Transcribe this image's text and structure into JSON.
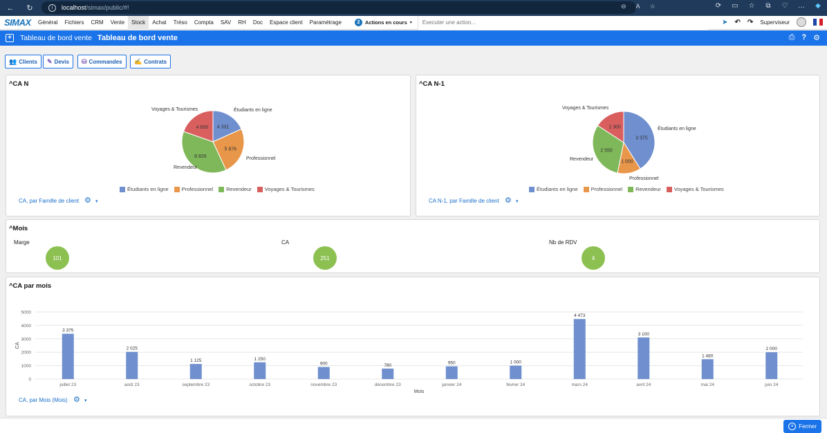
{
  "browser": {
    "url_host": "localhost",
    "url_path": "/simax/public/#!"
  },
  "app": {
    "logo": "SIMAX",
    "menu": [
      "Général",
      "Fichiers",
      "CRM",
      "Vente",
      "Stock",
      "Achat",
      "Tréso",
      "Compta",
      "SAV",
      "RH",
      "Doc",
      "Espace client",
      "Paramétrage"
    ],
    "active_menu": "Stock",
    "actions_count": "2",
    "actions_label": "Actions en cours",
    "exec_placeholder": "Executer une action...",
    "user": "Superviseur"
  },
  "titlebar": {
    "small": "Tableau de bord vente",
    "big": "Tableau de bord vente"
  },
  "tabs": [
    {
      "label": "Clients"
    },
    {
      "label": "Devis"
    },
    {
      "label": "Commandes"
    },
    {
      "label": "Contrats"
    }
  ],
  "colors": {
    "blue": "#6f8fcf",
    "orange": "#e8964a",
    "green": "#7fb85a",
    "red": "#d95f5f",
    "kpi": "#8cc152",
    "accent": "#1a73e8"
  },
  "panels": {
    "can": {
      "title": "^CA N",
      "link": "CA, par Famille de client",
      "labels": {
        "etudiants": "Étudiants en ligne",
        "professionnel": "Professionnel",
        "revendeur": "Revendeur",
        "voyages": "Voyages & Tourismes"
      }
    },
    "can1": {
      "title": "^CA N-1",
      "link": "CA N-1, par Famille de client",
      "labels": {
        "etudiants": "Étudiants en ligne",
        "professionnel": "Professionnel",
        "revendeur": "Revendeur",
        "voyages": "Voyages & Tourismes"
      }
    },
    "mois": {
      "title": "^Mois",
      "kpis": [
        {
          "label": "Marge",
          "value": "101"
        },
        {
          "label": "CA",
          "value": "251"
        },
        {
          "label": "Nb de RDV",
          "value": "4"
        }
      ]
    },
    "bar": {
      "title": "^CA par mois",
      "link": "CA, par Mois (Mois)"
    }
  },
  "chart_data": [
    {
      "type": "pie",
      "categories": [
        "Étudiants en ligne",
        "Professionnel",
        "Revendeur",
        "Voyages & Tourismes"
      ],
      "values": [
        4331,
        5876,
        8826,
        4650
      ],
      "value_labels": [
        "4 331",
        "5 876",
        "8 826",
        "4 650"
      ],
      "legend": "bottom"
    },
    {
      "type": "pie",
      "categories": [
        "Étudiants en ligne",
        "Professionnel",
        "Revendeur",
        "Voyages & Tourismes"
      ],
      "values": [
        3375,
        1000,
        2550,
        1300
      ],
      "value_labels": [
        "3 375",
        "1 000",
        "2 550",
        "1 300"
      ],
      "legend": "bottom"
    },
    {
      "type": "bar",
      "categories": [
        "juillet 23",
        "août 23",
        "septembre 23",
        "octobre 23",
        "novembre 23",
        "décembre 23",
        "janvier 24",
        "février 24",
        "mars 24",
        "avril 24",
        "mai 24",
        "juin 24"
      ],
      "values": [
        3375,
        2025,
        1125,
        1250,
        900,
        780,
        950,
        1000,
        4473,
        3100,
        1480,
        2000
      ],
      "value_labels": [
        "3 375",
        "2 025",
        "1 125",
        "1 250",
        "900",
        "780",
        "950",
        "1 000",
        "4 473",
        "3 100",
        "1 480",
        "2 000"
      ],
      "xlabel": "Mois",
      "ylabel": "CA",
      "ylim": [
        0,
        5000
      ],
      "yticks": [
        "0",
        "1000",
        "2000",
        "3000",
        "4000",
        "5000"
      ],
      "grid": true
    }
  ]
}
